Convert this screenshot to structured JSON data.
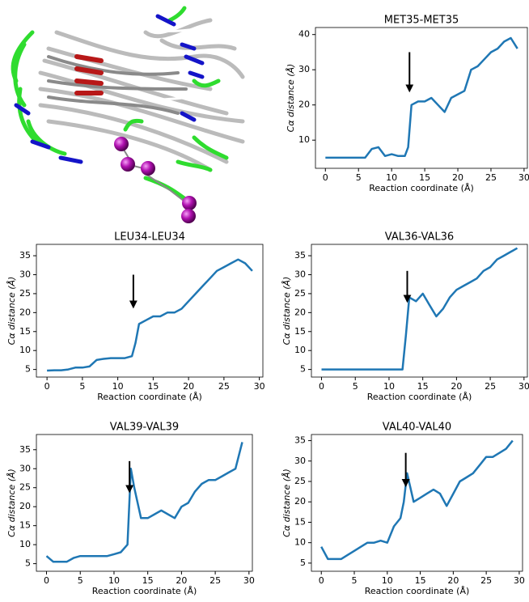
{
  "chart_data": [
    {
      "type": "line",
      "title": "MET35-MET35",
      "x_label": "Reaction coordinate (Å)",
      "y_label": "Cα distance (Å)",
      "x": [
        0,
        1,
        2,
        3,
        4,
        5,
        6,
        7,
        8,
        9,
        10,
        11,
        12,
        12.5,
        13,
        14,
        15,
        16,
        17,
        18,
        19,
        20,
        21,
        22,
        23,
        24,
        25,
        26,
        27,
        28,
        29
      ],
      "series": [
        {
          "name": "MET35-MET35",
          "color": "#1f77b4",
          "values": [
            5,
            5,
            5,
            5,
            5,
            5,
            5,
            7.5,
            8,
            5.5,
            6,
            5.5,
            5.5,
            8,
            20,
            21,
            21,
            22,
            20,
            18,
            22,
            23,
            24,
            30,
            31,
            33,
            35,
            36,
            38,
            39,
            36
          ]
        }
      ],
      "xlim": [
        -1.5,
        30.5
      ],
      "xticks": [
        0,
        5,
        10,
        15,
        20,
        25,
        30
      ],
      "ylim": [
        2,
        42
      ],
      "yticks": [
        10,
        20,
        30,
        40
      ],
      "annotations": [
        {
          "type": "arrow",
          "x": 12.7,
          "y_from": 35,
          "y_to": 24
        }
      ]
    },
    {
      "type": "line",
      "title": "LEU34-LEU34",
      "x_label": "Reaction coordinate (Å)",
      "y_label": "Cα distance (Å)",
      "x": [
        0,
        1,
        2,
        3,
        4,
        5,
        6,
        7,
        8,
        9,
        10,
        11,
        12,
        12.5,
        13,
        14,
        15,
        16,
        17,
        18,
        19,
        20,
        21,
        22,
        23,
        24,
        25,
        26,
        27,
        28,
        29
      ],
      "series": [
        {
          "name": "LEU34-LEU34",
          "color": "#1f77b4",
          "values": [
            4.7,
            4.8,
            4.8,
            5,
            5.5,
            5.5,
            5.8,
            7.5,
            7.8,
            8,
            8,
            8,
            8.5,
            12,
            17,
            18,
            19,
            19,
            20,
            20,
            21,
            23,
            25,
            27,
            29,
            31,
            32,
            33,
            34,
            33,
            31
          ]
        }
      ],
      "xlim": [
        -1.5,
        30.5
      ],
      "xticks": [
        0,
        5,
        10,
        15,
        20,
        25,
        30
      ],
      "ylim": [
        3,
        38
      ],
      "yticks": [
        5,
        10,
        15,
        20,
        25,
        30,
        35
      ],
      "annotations": [
        {
          "type": "arrow",
          "x": 12.2,
          "y_from": 30,
          "y_to": 21.5
        }
      ]
    },
    {
      "type": "line",
      "title": "VAL36-VAL36",
      "x_label": "Reaction coordinate (Å)",
      "y_label": "Cα distance (Å)",
      "x": [
        0,
        1,
        2,
        3,
        4,
        5,
        6,
        7,
        8,
        9,
        10,
        11,
        12,
        12.5,
        13,
        14,
        15,
        16,
        17,
        18,
        19,
        20,
        21,
        22,
        23,
        24,
        25,
        26,
        27,
        28,
        29
      ],
      "series": [
        {
          "name": "VAL36-VAL36",
          "color": "#1f77b4",
          "values": [
            5,
            5,
            5,
            5,
            5,
            5,
            5,
            5,
            5,
            5,
            5,
            5,
            5,
            14,
            24,
            23,
            25,
            22,
            19,
            21,
            24,
            26,
            27,
            28,
            29,
            31,
            32,
            34,
            35,
            36,
            37
          ]
        }
      ],
      "xlim": [
        -1.5,
        30.5
      ],
      "xticks": [
        0,
        5,
        10,
        15,
        20,
        25,
        30
      ],
      "ylim": [
        3,
        38
      ],
      "yticks": [
        5,
        10,
        15,
        20,
        25,
        30,
        35
      ],
      "annotations": [
        {
          "type": "arrow",
          "x": 12.7,
          "y_from": 31,
          "y_to": 23
        }
      ]
    },
    {
      "type": "line",
      "title": "VAL39-VAL39",
      "x_label": "Reaction coordinate (Å)",
      "y_label": "Cα distance (Å)",
      "x": [
        0,
        1,
        2,
        3,
        4,
        5,
        6,
        7,
        8,
        9,
        10,
        11,
        12,
        12.5,
        13,
        14,
        15,
        16,
        17,
        18,
        19,
        20,
        21,
        22,
        23,
        24,
        25,
        26,
        27,
        28,
        29
      ],
      "series": [
        {
          "name": "VAL39-VAL39",
          "color": "#1f77b4",
          "values": [
            7,
            5.5,
            5.5,
            5.5,
            6.5,
            7,
            7,
            7,
            7,
            7,
            7.5,
            8,
            10,
            30,
            25,
            17,
            17,
            18,
            19,
            18,
            17,
            20,
            21,
            24,
            26,
            27,
            27,
            28,
            29,
            30,
            37
          ]
        }
      ],
      "xlim": [
        -1.5,
        30.5
      ],
      "xticks": [
        0,
        5,
        10,
        15,
        20,
        25,
        30
      ],
      "ylim": [
        3,
        39
      ],
      "yticks": [
        5,
        10,
        15,
        20,
        25,
        30,
        35
      ],
      "annotations": [
        {
          "type": "arrow",
          "x": 12.3,
          "y_from": 32,
          "y_to": 24
        }
      ]
    },
    {
      "type": "line",
      "title": "VAL40-VAL40",
      "x_label": "Reaction coordinate (Å)",
      "y_label": "Cα distance (Å)",
      "x": [
        0,
        1,
        2,
        3,
        4,
        5,
        6,
        7,
        8,
        9,
        10,
        11,
        12,
        12.5,
        13,
        14,
        15,
        16,
        17,
        18,
        19,
        20,
        21,
        22,
        23,
        24,
        25,
        26,
        27,
        28,
        29
      ],
      "series": [
        {
          "name": "VAL40-VAL40",
          "color": "#1f77b4",
          "values": [
            9,
            6,
            6,
            6,
            7,
            8,
            9,
            10,
            10,
            10.5,
            10,
            14,
            16,
            20,
            27,
            20,
            21,
            22,
            23,
            22,
            19,
            22,
            25,
            26,
            27,
            29,
            31,
            31,
            32,
            33,
            35
          ]
        }
      ],
      "xlim": [
        -1.5,
        30.5
      ],
      "xticks": [
        0,
        5,
        10,
        15,
        20,
        25,
        30
      ],
      "ylim": [
        3,
        36.5
      ],
      "yticks": [
        5,
        10,
        15,
        20,
        25,
        30,
        35
      ],
      "annotations": [
        {
          "type": "arrow",
          "x": 12.8,
          "y_from": 32,
          "y_to": 24
        }
      ]
    }
  ]
}
